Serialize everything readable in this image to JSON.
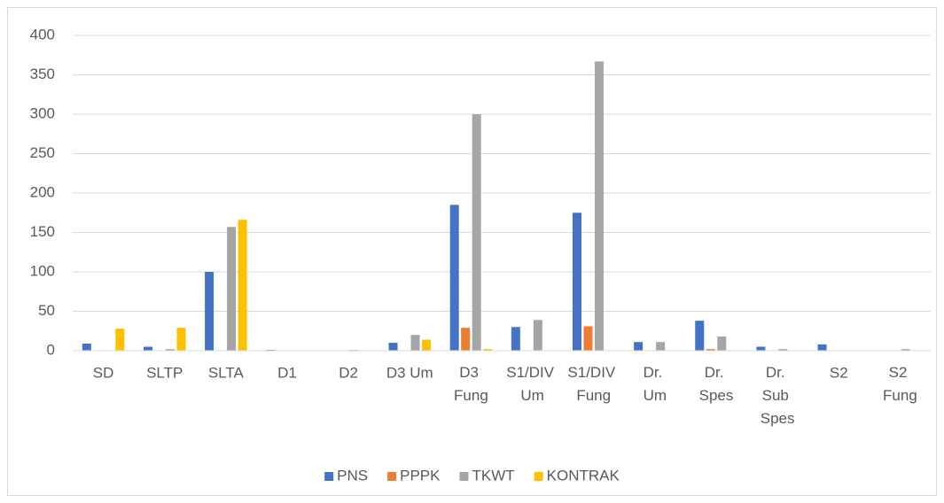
{
  "chart_data": {
    "type": "bar",
    "categories": [
      "SD",
      "SLTP",
      "SLTA",
      "D1",
      "D2",
      "D3 Um",
      "D3 Fung",
      "S1/DIV Um",
      "S1/DIV Fung",
      "Dr. Um",
      "Dr. Spes",
      "Dr. Sub Spes",
      "S2",
      "S2 Fung"
    ],
    "series": [
      {
        "name": "PNS",
        "color": "#4472c4",
        "values": [
          9,
          5,
          100,
          1,
          0,
          10,
          185,
          30,
          175,
          11,
          38,
          5,
          8,
          0
        ]
      },
      {
        "name": "PPPK",
        "color": "#ed7d31",
        "values": [
          0,
          0,
          0,
          0,
          0,
          0,
          29,
          0,
          31,
          0,
          2,
          0,
          0,
          0
        ]
      },
      {
        "name": "TKWT",
        "color": "#a5a5a5",
        "values": [
          0,
          2,
          157,
          0,
          1,
          20,
          300,
          39,
          367,
          11,
          18,
          2,
          0,
          2
        ]
      },
      {
        "name": "KONTRAK",
        "color": "#ffc000",
        "values": [
          28,
          29,
          166,
          0,
          0,
          14,
          2,
          0,
          0,
          0,
          0,
          0,
          0,
          0
        ]
      }
    ],
    "ylim": [
      0,
      400
    ],
    "yticks": [
      0,
      50,
      100,
      150,
      200,
      250,
      300,
      350,
      400
    ],
    "grid": true,
    "legend": "bottom"
  }
}
